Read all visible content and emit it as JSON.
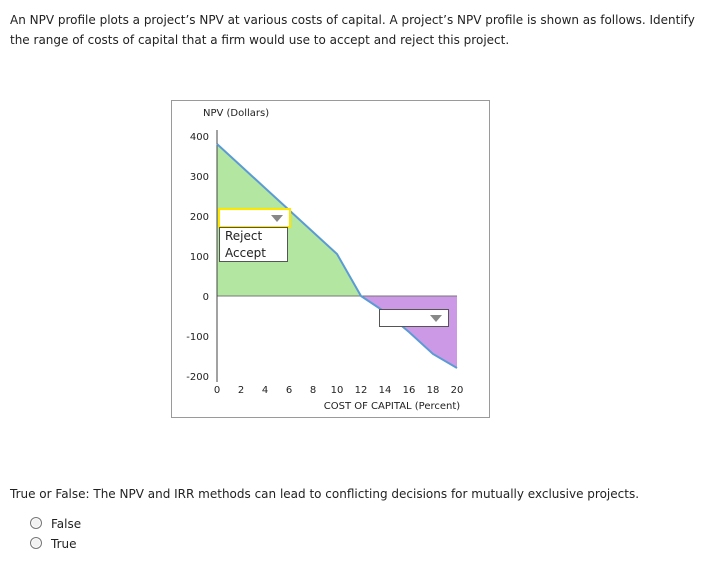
{
  "question1": {
    "text": "An NPV profile plots a project’s NPV at various costs of capital. A project’s NPV profile is shown as follows. Identify the range of costs of capital that a firm would use to accept and reject this project."
  },
  "colors": {
    "accept_region": "#b3e6a0",
    "reject_region": "#cc99e6",
    "npv_line": "#5b9bd5",
    "dropdown_focus": "#ffe600"
  },
  "chart_data": {
    "type": "area",
    "ylabel": "NPV (Dollars)",
    "xlabel": "COST OF CAPITAL (Percent)",
    "x_ticks": [
      "0",
      "2",
      "4",
      "6",
      "8",
      "10",
      "12",
      "14",
      "16",
      "18",
      "20"
    ],
    "y_ticks": [
      "400",
      "300",
      "200",
      "100",
      "0",
      "-100",
      "-200"
    ],
    "xlim": [
      0,
      20
    ],
    "ylim": [
      -200,
      400
    ],
    "grid": false,
    "series": [
      {
        "x": [
          0,
          2,
          4,
          6,
          8,
          10,
          12,
          14,
          16,
          18,
          20
        ],
        "y": [
          380,
          325,
          270,
          215,
          160,
          105,
          0,
          -40,
          -90,
          -145,
          -180
        ]
      }
    ]
  },
  "dropdown_upper": {
    "selected": "",
    "options": [
      "Reject",
      "Accept"
    ]
  },
  "dropdown_lower": {
    "selected": ""
  },
  "question2": {
    "text": "True or False: The NPV and IRR methods can lead to conflicting decisions for mutually exclusive projects.",
    "options": [
      "False",
      "True"
    ]
  }
}
